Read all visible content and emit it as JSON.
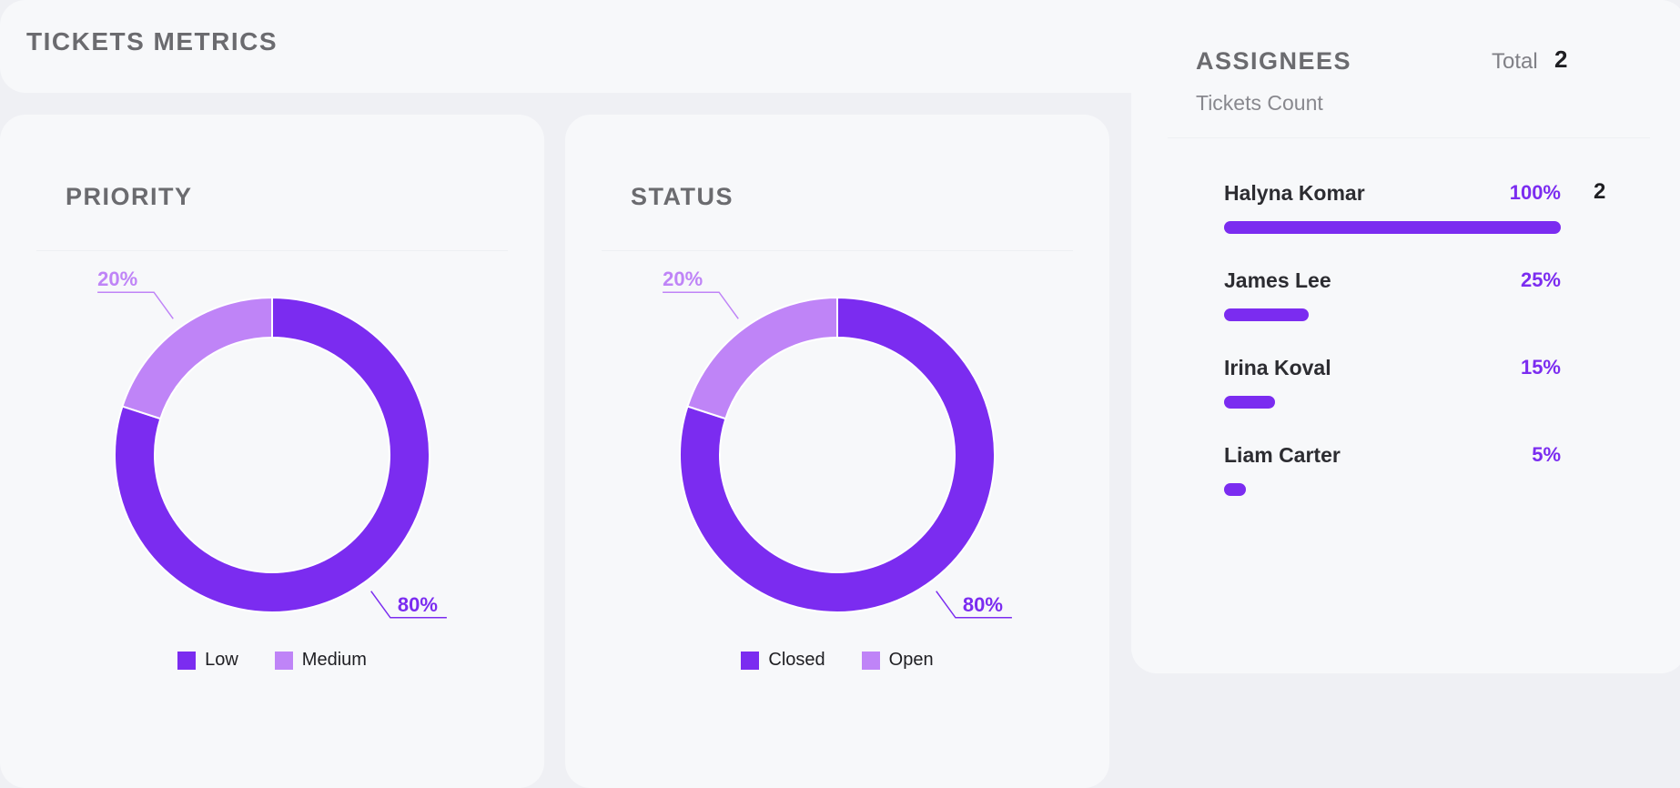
{
  "header": {
    "title": "TICKETS METRICS"
  },
  "priority": {
    "title": "PRIORITY"
  },
  "status": {
    "title": "STATUS"
  },
  "assignees": {
    "title": "ASSIGNEES",
    "total_label": "Total",
    "total_value": "2",
    "subtitle": "Tickets Count",
    "rows": [
      {
        "name": "Halyna Komar",
        "percent_label": "100%",
        "count": "2",
        "fraction": 1.0
      },
      {
        "name": "James Lee",
        "percent_label": "25%",
        "count": "",
        "fraction": 0.25
      },
      {
        "name": "Irina Koval",
        "percent_label": "15%",
        "count": "",
        "fraction": 0.15
      },
      {
        "name": "Liam Carter",
        "percent_label": "5%",
        "count": "",
        "fraction": 0.05
      }
    ]
  },
  "colors": {
    "primary": "#7b2cf0",
    "secondary": "#bf84f7",
    "background": "#eff0f4",
    "card": "#f7f8fa"
  },
  "chart_data": [
    {
      "type": "pie",
      "title": "PRIORITY",
      "categories": [
        "Low",
        "Medium"
      ],
      "values": [
        80,
        20
      ],
      "labels": [
        "80%",
        "20%"
      ],
      "colors": [
        "#7b2cf0",
        "#bf84f7"
      ],
      "legend": "bottom"
    },
    {
      "type": "pie",
      "title": "STATUS",
      "categories": [
        "Closed",
        "Open"
      ],
      "values": [
        80,
        20
      ],
      "labels": [
        "80%",
        "20%"
      ],
      "colors": [
        "#7b2cf0",
        "#bf84f7"
      ],
      "legend": "bottom"
    }
  ]
}
